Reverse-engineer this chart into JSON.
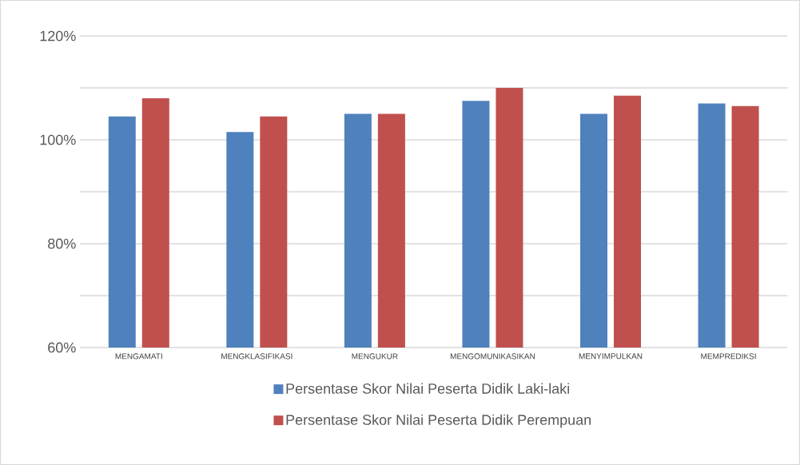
{
  "chart_data": {
    "type": "bar",
    "categories": [
      "MENGAMATI",
      "MENGKLASIFIKASI",
      "MENGUKUR",
      "MENGOMUNIKASIKAN",
      "MENYIMPULKAN",
      "MEMPREDIKSI"
    ],
    "series": [
      {
        "name": "Persentase Skor Nilai Peserta Didik Laki-laki",
        "color": "#4f81bd",
        "values": [
          104.5,
          101.5,
          105,
          107.5,
          105,
          107
        ]
      },
      {
        "name": "Persentase Skor Nilai Peserta Didik Perempuan",
        "color": "#c0504d",
        "values": [
          108,
          104.5,
          105,
          110,
          108.5,
          106.5
        ]
      }
    ],
    "ylim": [
      60,
      120
    ],
    "yticks": [
      {
        "value": 60,
        "label": "60%"
      },
      {
        "value": 70,
        "label": null
      },
      {
        "value": 80,
        "label": "80%"
      },
      {
        "value": 90,
        "label": null
      },
      {
        "value": 100,
        "label": "100%"
      },
      {
        "value": 110,
        "label": null
      },
      {
        "value": 120,
        "label": "120%"
      }
    ],
    "grid": "y",
    "legend": "bottom"
  }
}
